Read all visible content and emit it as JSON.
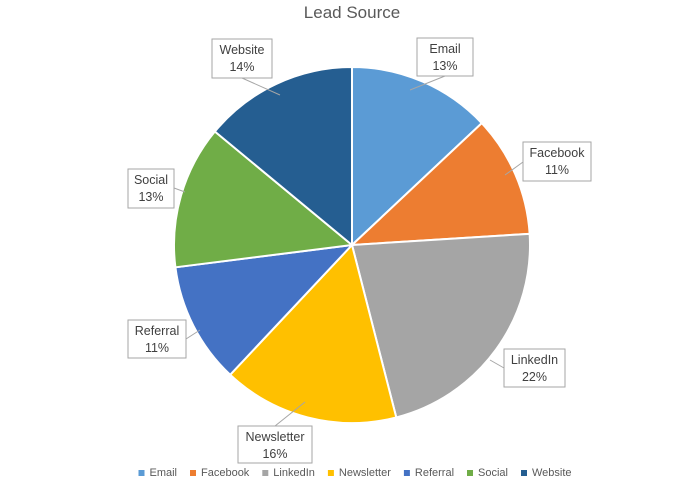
{
  "chart_data": {
    "type": "pie",
    "title": "Lead Source",
    "categories": [
      "Email",
      "Facebook",
      "LinkedIn",
      "Newsletter",
      "Referral",
      "Social",
      "Website"
    ],
    "values": [
      13,
      11,
      22,
      16,
      11,
      13,
      14
    ],
    "value_labels": [
      "13%",
      "11%",
      "22%",
      "16%",
      "11%",
      "13%",
      "14%"
    ],
    "colors": [
      "#5b9bd5",
      "#ed7d31",
      "#a5a5a5",
      "#ffc000",
      "#4472c4",
      "#70ad47",
      "#255e91"
    ],
    "start_angle_deg": 0,
    "direction": "clockwise",
    "legend_position": "bottom",
    "data_labels": "callouts with category name and percentage"
  }
}
